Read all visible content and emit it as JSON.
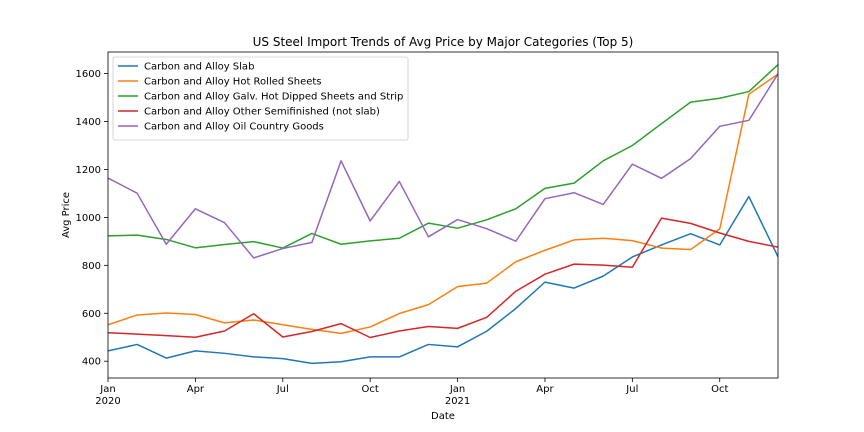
{
  "chart_data": {
    "type": "line",
    "title": "US Steel Import Trends of Avg Price by Major Categories (Top 5)",
    "xlabel": "Date",
    "ylabel": "Avg Price",
    "ylim": [
      330,
      1690
    ],
    "yticks": [
      400,
      600,
      800,
      1000,
      1200,
      1400,
      1600
    ],
    "x": [
      "2020-01",
      "2020-02",
      "2020-03",
      "2020-04",
      "2020-05",
      "2020-06",
      "2020-07",
      "2020-08",
      "2020-09",
      "2020-10",
      "2020-11",
      "2020-12",
      "2021-01",
      "2021-02",
      "2021-03",
      "2021-04",
      "2021-05",
      "2021-06",
      "2021-07",
      "2021-08",
      "2021-09",
      "2021-10",
      "2021-11",
      "2021-12"
    ],
    "xticks": [
      {
        "index": 0,
        "label": "Jan",
        "sub": "2020"
      },
      {
        "index": 3,
        "label": "Apr",
        "sub": ""
      },
      {
        "index": 6,
        "label": "Jul",
        "sub": ""
      },
      {
        "index": 9,
        "label": "Oct",
        "sub": ""
      },
      {
        "index": 12,
        "label": "Jan",
        "sub": "2021"
      },
      {
        "index": 15,
        "label": "Apr",
        "sub": ""
      },
      {
        "index": 18,
        "label": "Jul",
        "sub": ""
      },
      {
        "index": 21,
        "label": "Oct",
        "sub": ""
      }
    ],
    "grid": false,
    "legend_position": "top-left",
    "series": [
      {
        "name": "Carbon and Alloy Slab",
        "color": "#1f77b4",
        "values": [
          443,
          470,
          413,
          443,
          433,
          418,
          411,
          391,
          398,
          418,
          418,
          470,
          460,
          525,
          620,
          730,
          705,
          755,
          835,
          885,
          932,
          885,
          1087,
          836
        ]
      },
      {
        "name": "Carbon and Alloy Hot Rolled Sheets",
        "color": "#ff7f0e",
        "values": [
          552,
          593,
          601,
          595,
          560,
          572,
          552,
          533,
          516,
          543,
          599,
          636,
          711,
          726,
          815,
          863,
          906,
          913,
          903,
          872,
          866,
          952,
          1514,
          1598
        ]
      },
      {
        "name": "Carbon and Alloy Galv. Hot Dipped Sheets and Strip",
        "color": "#2ca02c",
        "values": [
          923,
          926,
          908,
          873,
          887,
          899,
          872,
          933,
          888,
          902,
          913,
          976,
          955,
          990,
          1036,
          1121,
          1143,
          1236,
          1300,
          1391,
          1481,
          1497,
          1525,
          1637
        ]
      },
      {
        "name": "Carbon and Alloy Other Semifinished (not slab)",
        "color": "#d62728",
        "values": [
          519,
          513,
          507,
          500,
          526,
          598,
          501,
          524,
          557,
          499,
          526,
          545,
          537,
          583,
          692,
          763,
          805,
          801,
          792,
          997,
          975,
          935,
          900,
          876
        ]
      },
      {
        "name": "Carbon and Alloy Oil Country Goods",
        "color": "#9467bd",
        "values": [
          1164,
          1101,
          888,
          1036,
          978,
          831,
          870,
          896,
          1236,
          985,
          1150,
          919,
          991,
          953,
          901,
          1078,
          1103,
          1054,
          1222,
          1163,
          1245,
          1380,
          1405,
          1599
        ]
      }
    ]
  }
}
